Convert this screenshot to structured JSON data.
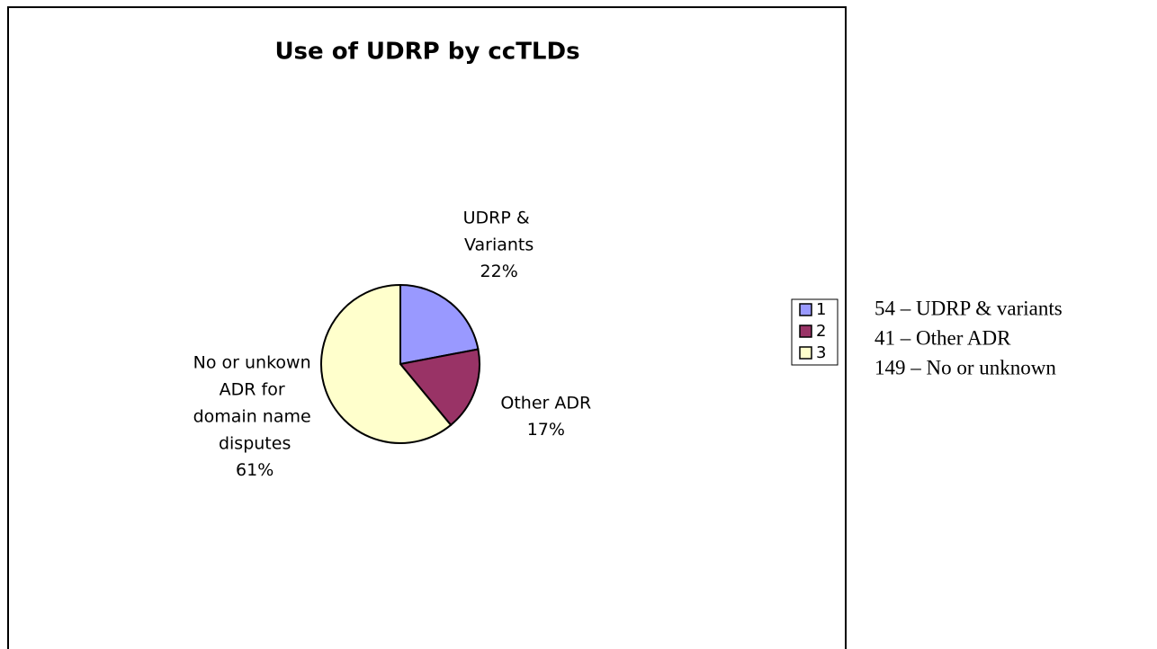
{
  "chart_data": {
    "type": "pie",
    "title": "Use of UDRP by ccTLDs",
    "categories": [
      "UDRP & Variants",
      "Other ADR",
      "No or unkown ADR for domain name disputes"
    ],
    "values": [
      22,
      17,
      61
    ],
    "value_labels": [
      "22%",
      "17%",
      "61%"
    ],
    "colors": [
      "#9999ff",
      "#993366",
      "#ffffcc"
    ],
    "legend_labels": [
      "1",
      "2",
      "3"
    ],
    "legend_position": "right",
    "annotations": [
      "54 – UDRP & variants",
      "41 – Other ADR",
      "149 – No or unknown"
    ]
  }
}
